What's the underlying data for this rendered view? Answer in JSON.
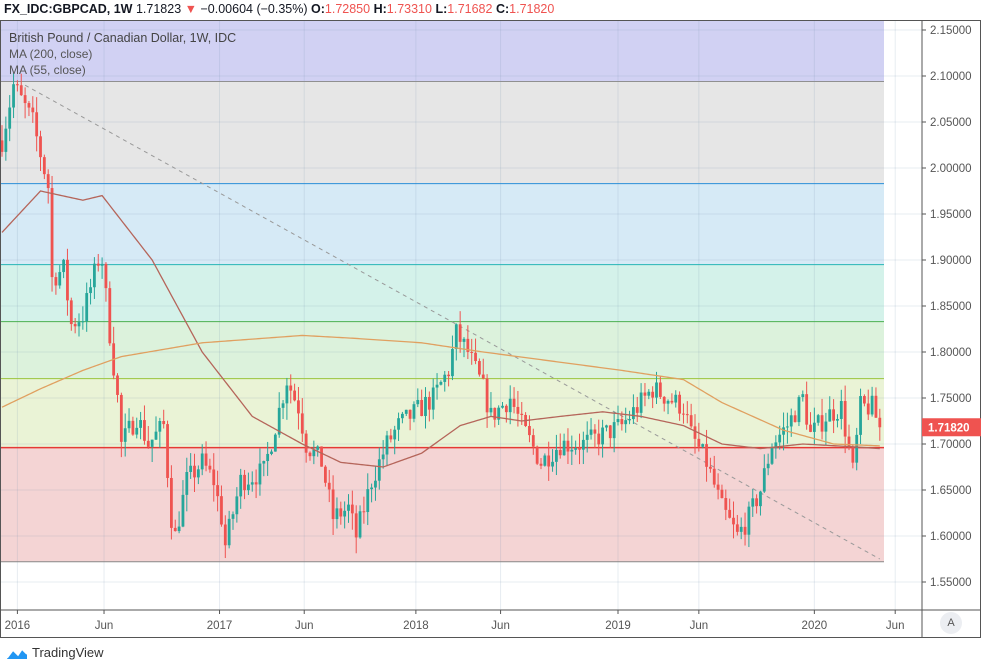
{
  "header": {
    "symbol": "FX_IDC:GBPCAD, 1W",
    "last": "1.71823",
    "change_arrow": "▼",
    "change": "−0.00604 (−0.35%)",
    "o_label": "O:",
    "o": "1.72850",
    "h_label": "H:",
    "h": "1.73310",
    "l_label": "L:",
    "l": "1.71682",
    "c_label": "C:",
    "c": "1.71820"
  },
  "legend": {
    "title": "British Pound / Canadian Dollar, 1W, IDC",
    "ma1": "MA (200, close)",
    "ma2": "MA (55, close)"
  },
  "footer": {
    "brand": "TradingView",
    "auto_button": "A"
  },
  "colors": {
    "up": "#26a69a",
    "down": "#ef5350",
    "ma200": "#e0a060",
    "ma55": "#b5655a"
  },
  "chart_data": {
    "type": "candlestick",
    "title": "British Pound / Canadian Dollar, 1W, IDC",
    "ylim": [
      1.53,
      2.16
    ],
    "y_ticks": [
      "2.15000",
      "2.10000",
      "2.05000",
      "2.00000",
      "1.95000",
      "1.90000",
      "1.85000",
      "1.80000",
      "1.75000",
      "1.70000",
      "1.65000",
      "1.60000",
      "1.55000"
    ],
    "x_ticks": [
      {
        "label": "2016",
        "week": 4
      },
      {
        "label": "Jun",
        "week": 26.5
      },
      {
        "label": "2017",
        "week": 56.5
      },
      {
        "label": "Jun",
        "week": 78.5
      },
      {
        "label": "2018",
        "week": 107.5
      },
      {
        "label": "Jun",
        "week": 129.5
      },
      {
        "label": "2019",
        "week": 160
      },
      {
        "label": "Jun",
        "week": 181
      },
      {
        "label": "2020",
        "week": 211
      },
      {
        "label": "Jun",
        "week": 232
      }
    ],
    "last_price_label": "1.71820",
    "fib_levels": [
      2.094,
      1.983,
      1.895,
      1.833,
      1.771,
      1.696,
      1.572
    ],
    "trendline": [
      [
        6,
        2.09
      ],
      [
        228,
        1.575
      ]
    ],
    "close_anchors": [
      [
        0,
        2.03
      ],
      [
        3,
        2.09
      ],
      [
        8,
        2.05
      ],
      [
        12,
        1.98
      ],
      [
        13,
        1.88
      ],
      [
        16,
        1.89
      ],
      [
        18,
        1.83
      ],
      [
        21,
        1.84
      ],
      [
        25,
        1.9
      ],
      [
        26,
        1.9
      ],
      [
        28,
        1.82
      ],
      [
        30,
        1.75
      ],
      [
        31,
        1.7
      ],
      [
        35,
        1.73
      ],
      [
        38,
        1.7
      ],
      [
        42,
        1.72
      ],
      [
        44,
        1.62
      ],
      [
        45,
        1.6
      ],
      [
        48,
        1.66
      ],
      [
        52,
        1.68
      ],
      [
        55,
        1.66
      ],
      [
        57,
        1.62
      ],
      [
        58,
        1.59
      ],
      [
        62,
        1.66
      ],
      [
        68,
        1.67
      ],
      [
        71,
        1.72
      ],
      [
        74,
        1.77
      ],
      [
        77,
        1.74
      ],
      [
        79,
        1.7
      ],
      [
        83,
        1.68
      ],
      [
        86,
        1.62
      ],
      [
        90,
        1.63
      ],
      [
        92,
        1.6
      ],
      [
        96,
        1.66
      ],
      [
        100,
        1.7
      ],
      [
        103,
        1.72
      ],
      [
        106,
        1.73
      ],
      [
        112,
        1.75
      ],
      [
        116,
        1.78
      ],
      [
        118,
        1.82
      ],
      [
        121,
        1.8
      ],
      [
        125,
        1.76
      ],
      [
        127,
        1.73
      ],
      [
        132,
        1.75
      ],
      [
        135,
        1.72
      ],
      [
        140,
        1.68
      ],
      [
        145,
        1.7
      ],
      [
        151,
        1.7
      ],
      [
        156,
        1.71
      ],
      [
        161,
        1.72
      ],
      [
        165,
        1.74
      ],
      [
        169,
        1.76
      ],
      [
        173,
        1.75
      ],
      [
        177,
        1.74
      ],
      [
        179,
        1.71
      ],
      [
        183,
        1.68
      ],
      [
        187,
        1.63
      ],
      [
        191,
        1.6
      ],
      [
        194,
        1.62
      ],
      [
        197,
        1.65
      ],
      [
        200,
        1.7
      ],
      [
        204,
        1.72
      ],
      [
        208,
        1.75
      ],
      [
        210,
        1.71
      ],
      [
        214,
        1.73
      ],
      [
        218,
        1.74
      ],
      [
        221,
        1.67
      ],
      [
        223,
        1.74
      ],
      [
        226,
        1.74
      ],
      [
        228,
        1.7182
      ]
    ],
    "series": [
      {
        "name": "MA (55, close)",
        "points": [
          [
            0,
            1.93
          ],
          [
            10,
            1.975
          ],
          [
            21,
            1.965
          ],
          [
            26,
            1.97
          ],
          [
            39,
            1.9
          ],
          [
            52,
            1.8
          ],
          [
            65,
            1.73
          ],
          [
            78,
            1.7
          ],
          [
            88,
            1.68
          ],
          [
            99,
            1.675
          ],
          [
            109,
            1.69
          ],
          [
            119,
            1.72
          ],
          [
            127,
            1.73
          ],
          [
            135,
            1.725
          ],
          [
            145,
            1.73
          ],
          [
            156,
            1.735
          ],
          [
            166,
            1.73
          ],
          [
            177,
            1.72
          ],
          [
            187,
            1.7
          ],
          [
            197,
            1.695
          ],
          [
            208,
            1.7
          ],
          [
            221,
            1.697
          ],
          [
            228,
            1.695
          ]
        ]
      },
      {
        "name": "MA (200, close)",
        "points": [
          [
            0,
            1.74
          ],
          [
            10,
            1.76
          ],
          [
            21,
            1.78
          ],
          [
            31,
            1.795
          ],
          [
            52,
            1.81
          ],
          [
            78,
            1.818
          ],
          [
            91,
            1.815
          ],
          [
            109,
            1.81
          ],
          [
            125,
            1.8
          ],
          [
            143,
            1.79
          ],
          [
            161,
            1.78
          ],
          [
            177,
            1.77
          ],
          [
            187,
            1.745
          ],
          [
            203,
            1.715
          ],
          [
            216,
            1.7
          ],
          [
            228,
            1.698
          ]
        ]
      }
    ]
  }
}
